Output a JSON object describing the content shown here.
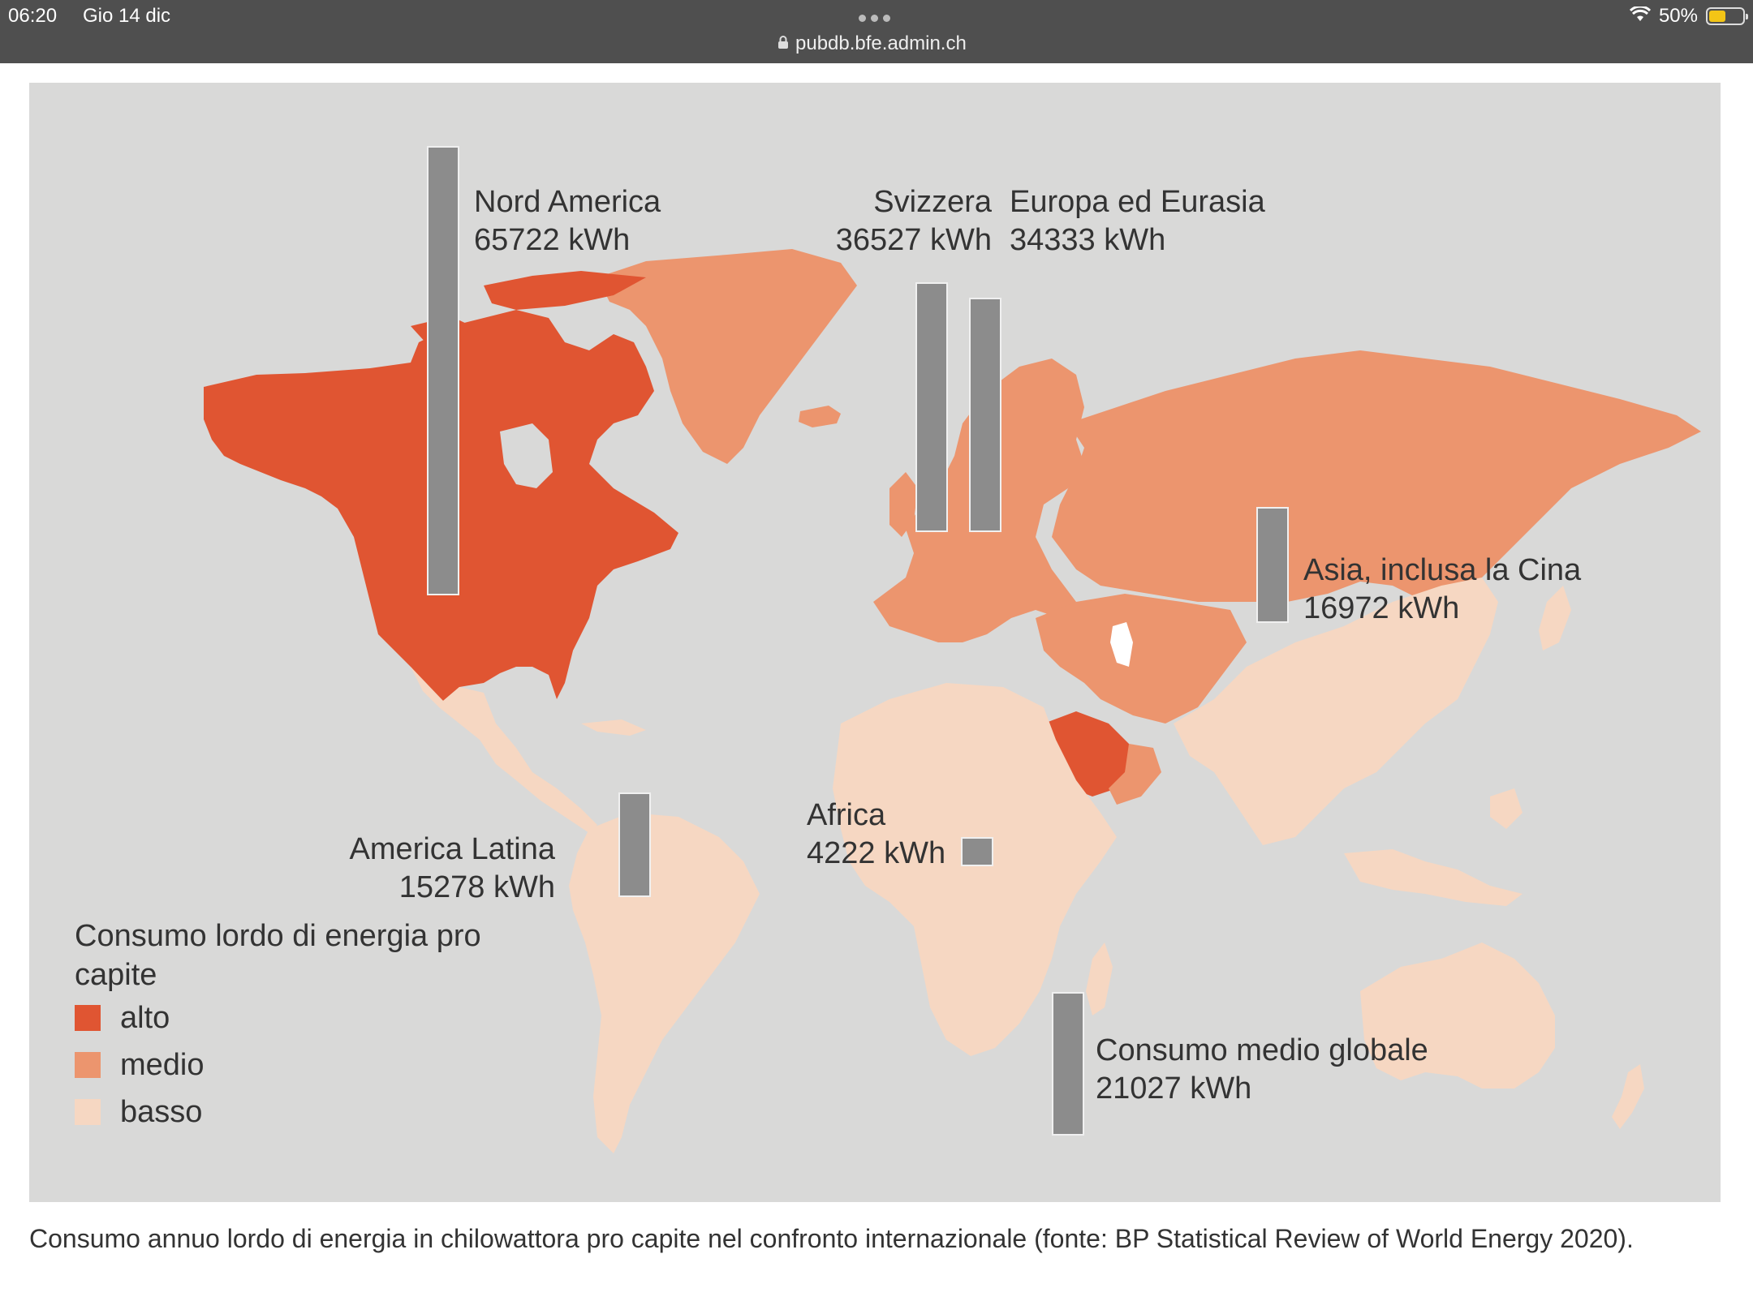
{
  "status_bar": {
    "time": "06:20",
    "date": "Gio 14 dic",
    "url": "pubdb.bfe.admin.ch",
    "battery": "50%",
    "battery_level": 0.5
  },
  "legend": {
    "title": "Consumo lordo di energia pro capite",
    "items": [
      {
        "label": "alto",
        "color": "#e05532"
      },
      {
        "label": "medio",
        "color": "#ec956e"
      },
      {
        "label": "basso",
        "color": "#f6d7c2"
      }
    ]
  },
  "chart_data": {
    "type": "bar",
    "categories": [
      "Nord America",
      "Svizzera",
      "Europa ed Eurasia",
      "Asia, inclusa la Cina",
      "America Latina",
      "Africa",
      "Consumo medio globale"
    ],
    "values": [
      65722,
      36527,
      34333,
      16972,
      15278,
      4222,
      21027
    ],
    "value_labels": [
      "65722 kWh",
      "36527 kWh",
      "34333 kWh",
      "16972 kWh",
      "15278 kWh",
      "4222 kWh",
      "21027 kWh"
    ],
    "unit": "kWh",
    "bar_color": "#8c8c8c"
  },
  "map": {
    "ocean_color": "#d9d9d8",
    "high_color": "#e05532",
    "medium_color": "#ec956e",
    "low_color": "#f6d7c2"
  },
  "caption": "Consumo annuo lordo di energia in chilowattora pro capite nel confronto internazionale (fonte: BP Statistical Review of World Energy 2020)."
}
